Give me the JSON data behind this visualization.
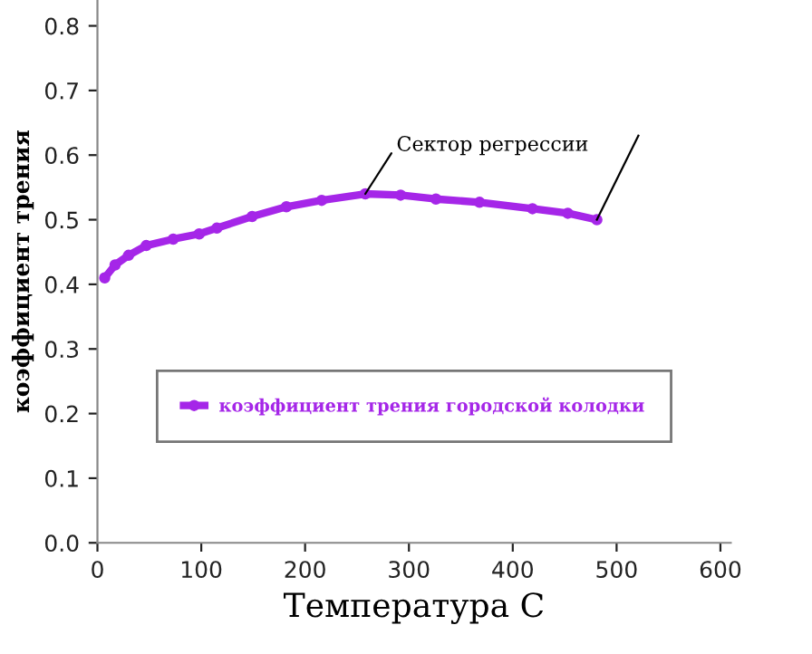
{
  "chart_data": {
    "type": "line",
    "xlabel": "Температура С",
    "ylabel": "коэффициент трения",
    "x": [
      7,
      17,
      30,
      47,
      73,
      98,
      115,
      149,
      182,
      216,
      258,
      292,
      326,
      368,
      419,
      453,
      481
    ],
    "series": [
      {
        "name": "коэффициент трения городской колодки",
        "color": "#a526e8",
        "values": [
          0.41,
          0.43,
          0.445,
          0.46,
          0.47,
          0.478,
          0.487,
          0.505,
          0.52,
          0.53,
          0.54,
          0.538,
          0.532,
          0.527,
          0.517,
          0.51,
          0.5
        ]
      }
    ],
    "annotations": [
      {
        "text": "Сектор регрессии",
        "x": 258,
        "y": 0.54
      }
    ],
    "xlim": [
      0,
      610
    ],
    "ylim": [
      0,
      0.84
    ],
    "xticks": [
      0,
      100,
      200,
      300,
      400,
      500,
      600
    ],
    "yticks": [
      {
        "value": 0,
        "label": "0.0"
      },
      0.1,
      0.2,
      0.3,
      0.4,
      0.5,
      0.6,
      0.7,
      0.8
    ],
    "grid": false,
    "legend": "bottom",
    "marker": "circle",
    "line_style": "solid"
  }
}
